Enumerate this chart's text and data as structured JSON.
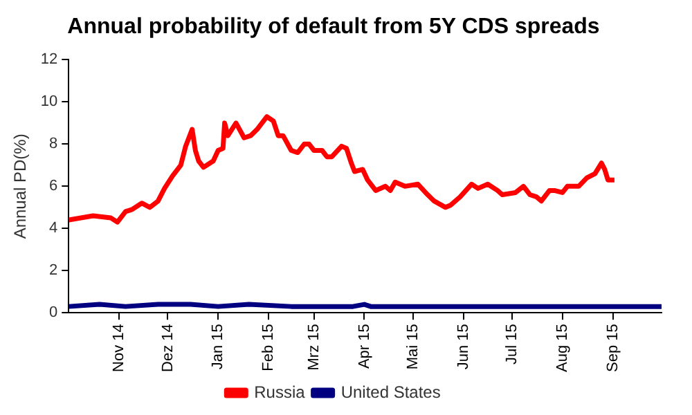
{
  "chart_data": {
    "type": "line",
    "title": "Annual probability of default from 5Y CDS spreads",
    "ylabel": "Annual PD(%)",
    "xlim": [
      "2014-10-01",
      "2015-10-01"
    ],
    "xticks": [
      {
        "value": "2014-11-01",
        "label": "Nov 14"
      },
      {
        "value": "2014-12-01",
        "label": "Dez 14"
      },
      {
        "value": "2015-01-01",
        "label": "Jan 15"
      },
      {
        "value": "2015-02-01",
        "label": "Feb 15"
      },
      {
        "value": "2015-03-01",
        "label": "Mrz 15"
      },
      {
        "value": "2015-04-01",
        "label": "Apr 15"
      },
      {
        "value": "2015-05-01",
        "label": "Mai 15"
      },
      {
        "value": "2015-06-01",
        "label": "Jun 15"
      },
      {
        "value": "2015-07-01",
        "label": "Jul 15"
      },
      {
        "value": "2015-08-01",
        "label": "Aug 15"
      },
      {
        "value": "2015-09-01",
        "label": "Sep 15"
      }
    ],
    "ylim": [
      0,
      12
    ],
    "yticks": [
      0,
      2,
      4,
      6,
      8,
      10,
      12
    ],
    "grid": false,
    "legend": "bottom",
    "marker": "none",
    "line_style": "solid",
    "series": [
      {
        "name": "Russia",
        "color": "#ff0000",
        "x": [
          "2014-10-01",
          "2014-10-16",
          "2014-10-27",
          "2014-10-31",
          "2014-11-05",
          "2014-11-09",
          "2014-11-15",
          "2014-11-20",
          "2014-11-25",
          "2014-11-29",
          "2014-12-04",
          "2014-12-09",
          "2014-12-12",
          "2014-12-16",
          "2014-12-18",
          "2014-12-20",
          "2014-12-23",
          "2014-12-29",
          "2015-01-01",
          "2015-01-04",
          "2015-01-05",
          "2015-01-07",
          "2015-01-12",
          "2015-01-17",
          "2015-01-21",
          "2015-01-25",
          "2015-01-31",
          "2015-02-04",
          "2015-02-07",
          "2015-02-10",
          "2015-02-15",
          "2015-02-19",
          "2015-02-23",
          "2015-02-26",
          "2015-03-01",
          "2015-03-06",
          "2015-03-09",
          "2015-03-12",
          "2015-03-18",
          "2015-03-21",
          "2015-03-24",
          "2015-03-26",
          "2015-03-31",
          "2015-04-03",
          "2015-04-08",
          "2015-04-14",
          "2015-04-17",
          "2015-04-20",
          "2015-04-26",
          "2015-05-04",
          "2015-05-10",
          "2015-05-14",
          "2015-05-21",
          "2015-05-24",
          "2015-05-30",
          "2015-06-06",
          "2015-06-10",
          "2015-06-16",
          "2015-06-22",
          "2015-06-25",
          "2015-07-03",
          "2015-07-08",
          "2015-07-12",
          "2015-07-16",
          "2015-07-19",
          "2015-07-24",
          "2015-07-27",
          "2015-08-01",
          "2015-08-04",
          "2015-08-11",
          "2015-08-16",
          "2015-08-21",
          "2015-08-25",
          "2015-08-27",
          "2015-08-29",
          "2015-09-02"
        ],
        "values": [
          4.4,
          4.6,
          4.5,
          4.3,
          4.8,
          4.9,
          5.2,
          5.0,
          5.3,
          5.9,
          6.5,
          7.0,
          7.9,
          8.7,
          7.7,
          7.2,
          6.9,
          7.2,
          7.7,
          7.8,
          9.0,
          8.4,
          9.0,
          8.3,
          8.4,
          8.7,
          9.3,
          9.1,
          8.4,
          8.4,
          7.7,
          7.6,
          8.0,
          8.0,
          7.7,
          7.7,
          7.4,
          7.4,
          7.9,
          7.8,
          7.1,
          6.7,
          6.8,
          6.3,
          5.8,
          6.0,
          5.8,
          6.2,
          6.0,
          6.1,
          5.6,
          5.3,
          5.0,
          5.1,
          5.5,
          6.1,
          5.9,
          6.1,
          5.8,
          5.6,
          5.7,
          6.0,
          5.6,
          5.5,
          5.3,
          5.8,
          5.8,
          5.7,
          6.0,
          6.0,
          6.4,
          6.6,
          7.1,
          6.8,
          6.3,
          6.3
        ]
      },
      {
        "name": "United States",
        "color": "#000080",
        "x": [
          "2014-10-01",
          "2014-10-20",
          "2014-11-05",
          "2014-11-25",
          "2014-12-15",
          "2015-01-01",
          "2015-01-20",
          "2015-02-15",
          "2015-03-25",
          "2015-04-01",
          "2015-04-05",
          "2015-10-01"
        ],
        "values": [
          0.3,
          0.4,
          0.3,
          0.4,
          0.4,
          0.3,
          0.4,
          0.3,
          0.3,
          0.4,
          0.3,
          0.3
        ]
      }
    ]
  }
}
